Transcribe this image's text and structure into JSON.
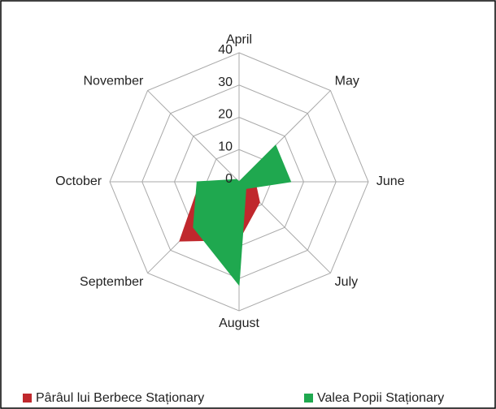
{
  "chart_data": {
    "type": "radar",
    "categories": [
      "April",
      "May",
      "June",
      "July",
      "August",
      "September",
      "October",
      "November"
    ],
    "series": [
      {
        "name": "Pârâul lui Berbece Staționary",
        "color": "#c0282d",
        "values": [
          0,
          0,
          5,
          9,
          18,
          26,
          12,
          0
        ]
      },
      {
        "name": "Valea Popii Staționary",
        "color": "#1fa84f",
        "values": [
          0,
          16,
          16,
          3,
          32,
          20,
          13,
          1
        ]
      }
    ],
    "ylim": [
      0,
      40
    ],
    "yticks": [
      0,
      10,
      20,
      30,
      40
    ],
    "grid": true,
    "legend": "bottom"
  }
}
